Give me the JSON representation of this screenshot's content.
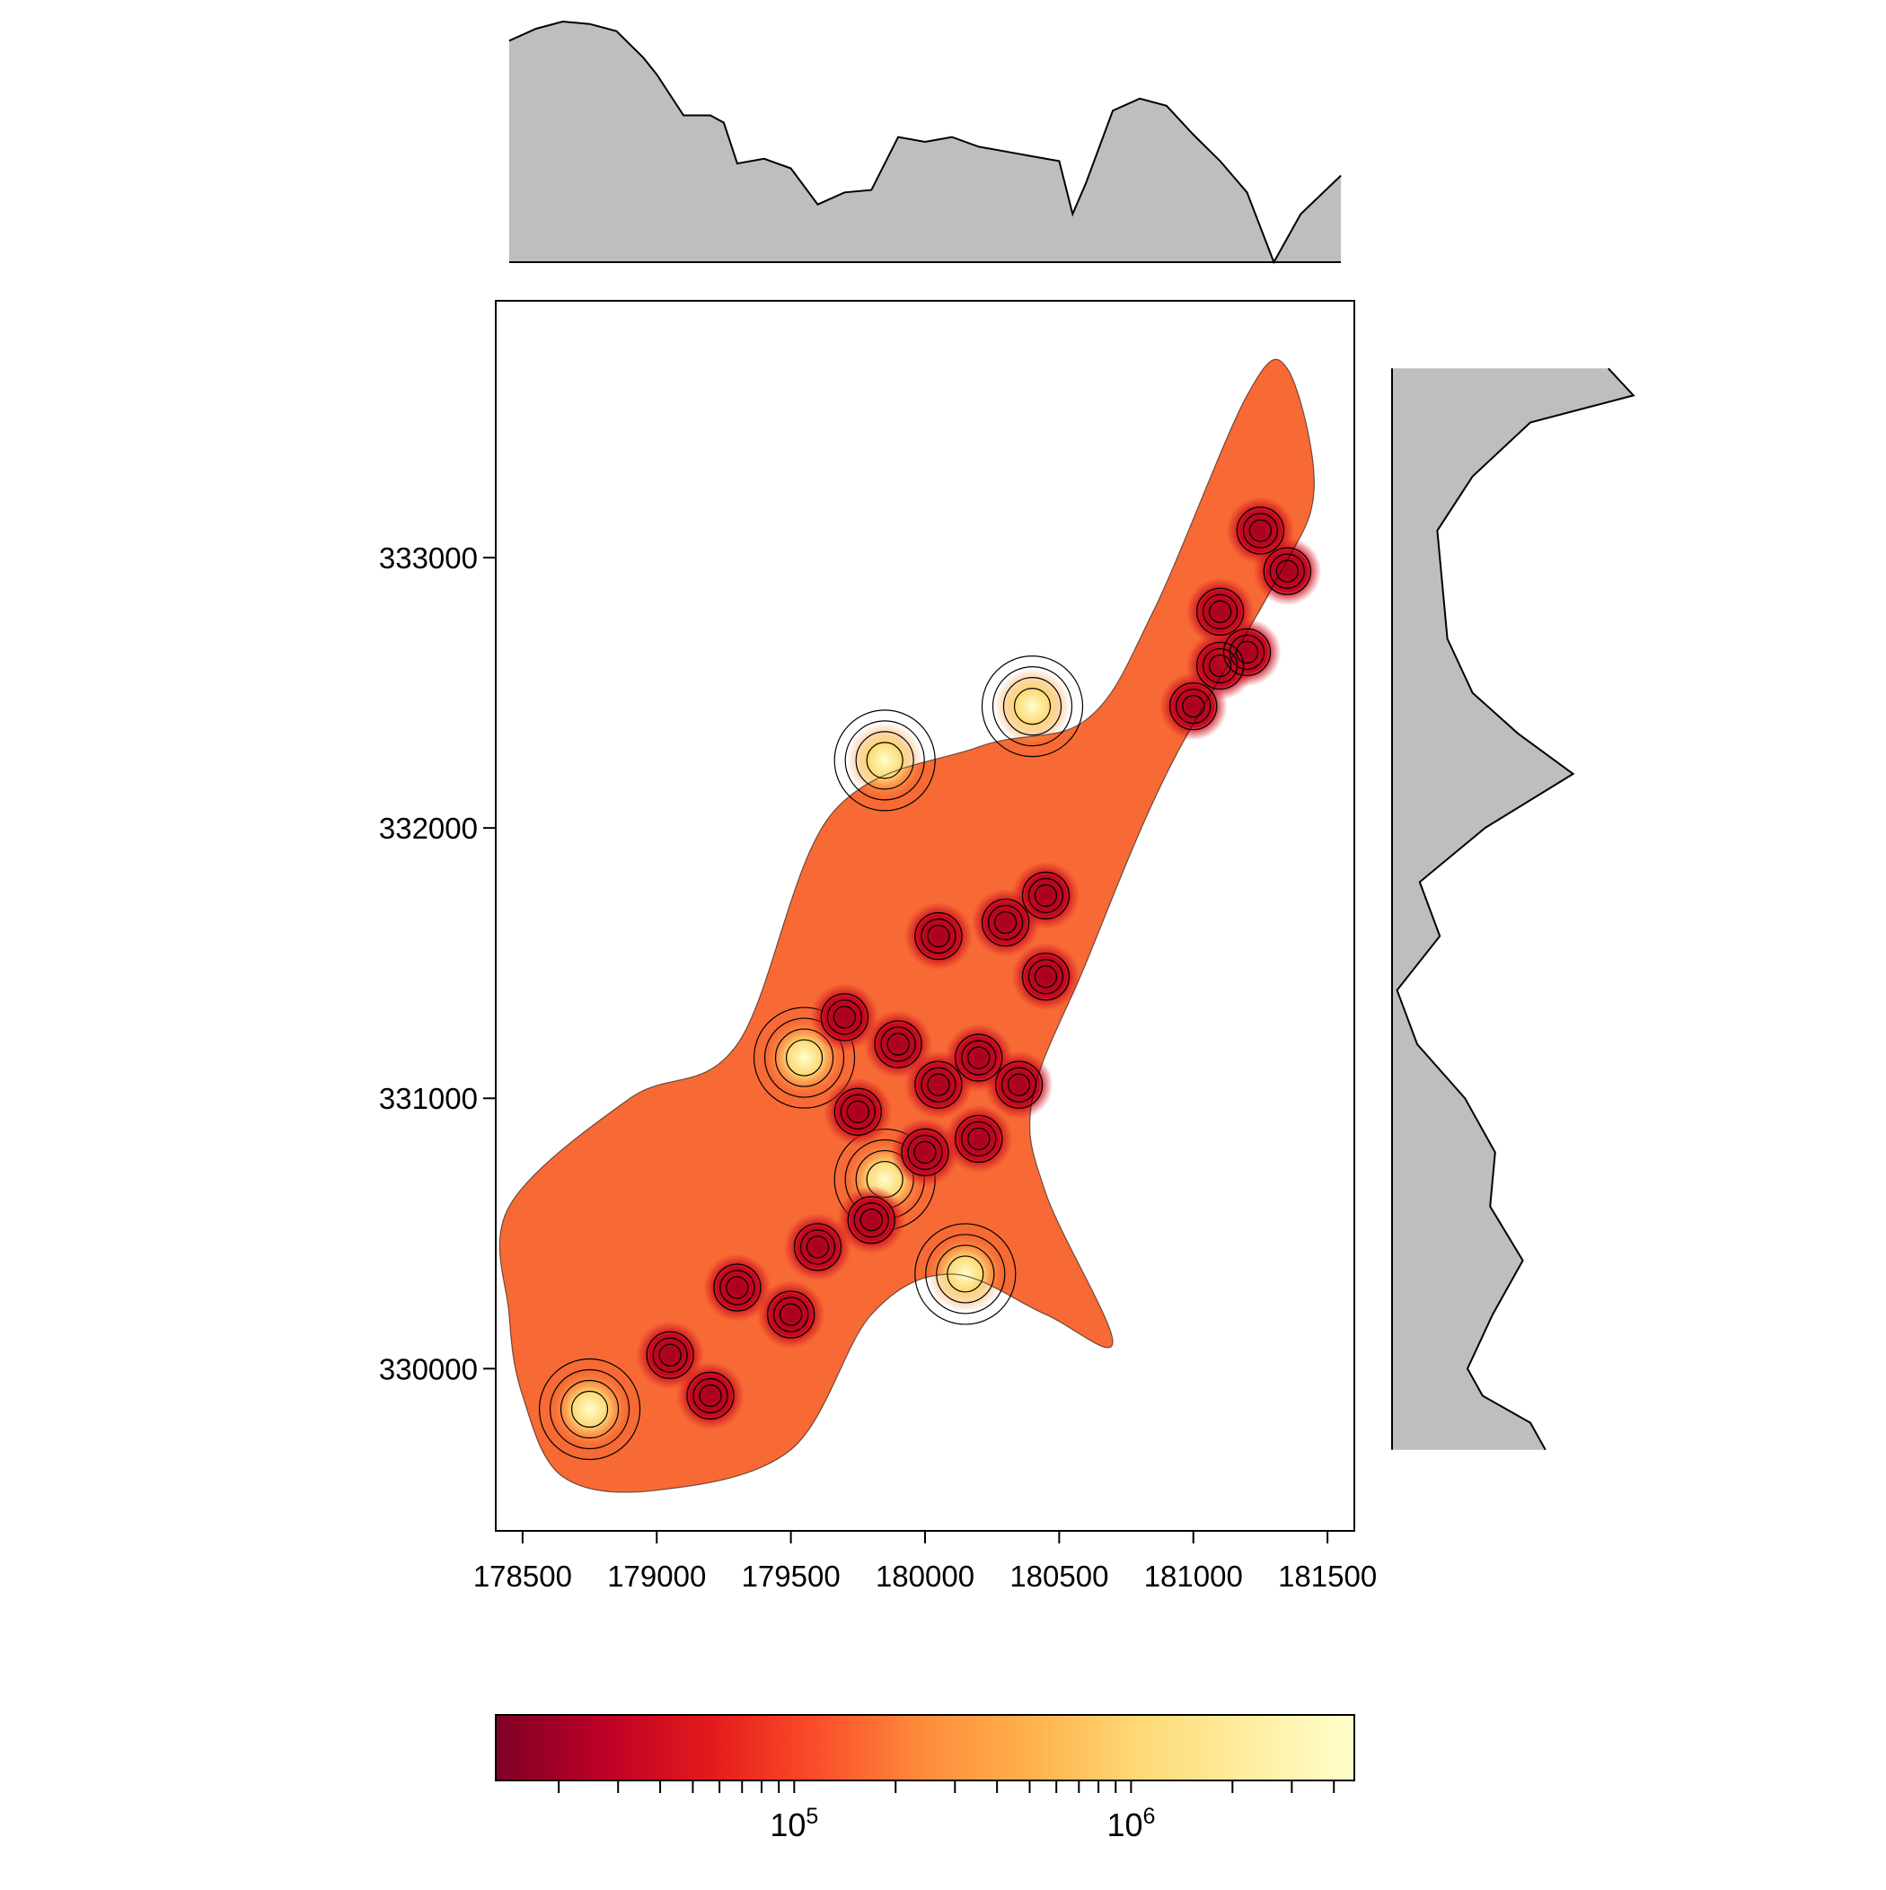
{
  "chart_data": [
    {
      "type": "heatmap",
      "title": "",
      "xlabel": "",
      "ylabel": "",
      "x_ticks": [
        "178500",
        "179000",
        "179500",
        "180000",
        "180500",
        "181000",
        "181500"
      ],
      "y_ticks": [
        "330000",
        "331000",
        "332000",
        "333000"
      ],
      "xlim": [
        178400,
        181600
      ],
      "ylim": [
        329400,
        333950
      ],
      "grid": false,
      "contours": true,
      "surface_outline": [
        [
          178500,
          329900
        ],
        [
          178450,
          330200
        ],
        [
          178450,
          330600
        ],
        [
          178900,
          331000
        ],
        [
          179300,
          331200
        ],
        [
          179650,
          332050
        ],
        [
          180200,
          332300
        ],
        [
          180600,
          332400
        ],
        [
          180850,
          332800
        ],
        [
          181200,
          333600
        ],
        [
          181350,
          333700
        ],
        [
          181450,
          333250
        ],
        [
          181300,
          332900
        ],
        [
          180900,
          332200
        ],
        [
          180600,
          331500
        ],
        [
          180400,
          331000
        ],
        [
          180450,
          330650
        ],
        [
          180700,
          330100
        ],
        [
          180450,
          330200
        ],
        [
          180100,
          330350
        ],
        [
          179800,
          330200
        ],
        [
          179500,
          329700
        ],
        [
          179000,
          329550
        ],
        [
          178650,
          329600
        ]
      ],
      "hotspots": [
        {
          "x": 179300,
          "y": 330300
        },
        {
          "x": 179500,
          "y": 330200
        },
        {
          "x": 179600,
          "y": 330450
        },
        {
          "x": 179050,
          "y": 330050
        },
        {
          "x": 179200,
          "y": 329900
        },
        {
          "x": 179800,
          "y": 330550
        },
        {
          "x": 179700,
          "y": 331300
        },
        {
          "x": 179900,
          "y": 331200
        },
        {
          "x": 180050,
          "y": 331050
        },
        {
          "x": 180200,
          "y": 331150
        },
        {
          "x": 180350,
          "y": 331050
        },
        {
          "x": 179750,
          "y": 330950
        },
        {
          "x": 180000,
          "y": 330800
        },
        {
          "x": 180200,
          "y": 330850
        },
        {
          "x": 180450,
          "y": 331450
        },
        {
          "x": 180450,
          "y": 331750
        },
        {
          "x": 180300,
          "y": 331650
        },
        {
          "x": 180050,
          "y": 331600
        },
        {
          "x": 181100,
          "y": 332800
        },
        {
          "x": 181250,
          "y": 333100
        },
        {
          "x": 181350,
          "y": 332950
        },
        {
          "x": 181000,
          "y": 332450
        },
        {
          "x": 181100,
          "y": 332600
        },
        {
          "x": 181200,
          "y": 332650
        }
      ],
      "high_spots": [
        {
          "x": 180150,
          "y": 330350
        },
        {
          "x": 178750,
          "y": 329850
        },
        {
          "x": 179550,
          "y": 331150
        },
        {
          "x": 179850,
          "y": 330700
        },
        {
          "x": 179850,
          "y": 332250
        },
        {
          "x": 180400,
          "y": 332450
        }
      ],
      "top_marginal": [
        [
          178450,
          0.92
        ],
        [
          178550,
          0.97
        ],
        [
          178650,
          1.0
        ],
        [
          178750,
          0.99
        ],
        [
          178850,
          0.96
        ],
        [
          178950,
          0.85
        ],
        [
          179000,
          0.78
        ],
        [
          179100,
          0.61
        ],
        [
          179200,
          0.61
        ],
        [
          179250,
          0.58
        ],
        [
          179300,
          0.41
        ],
        [
          179400,
          0.43
        ],
        [
          179500,
          0.39
        ],
        [
          179600,
          0.24
        ],
        [
          179700,
          0.29
        ],
        [
          179800,
          0.3
        ],
        [
          179900,
          0.52
        ],
        [
          180000,
          0.5
        ],
        [
          180100,
          0.52
        ],
        [
          180200,
          0.48
        ],
        [
          180300,
          0.46
        ],
        [
          180400,
          0.44
        ],
        [
          180500,
          0.42
        ],
        [
          180550,
          0.2
        ],
        [
          180600,
          0.33
        ],
        [
          180700,
          0.63
        ],
        [
          180800,
          0.68
        ],
        [
          180900,
          0.65
        ],
        [
          181000,
          0.53
        ],
        [
          181100,
          0.42
        ],
        [
          181200,
          0.29
        ],
        [
          181300,
          0.0
        ],
        [
          181400,
          0.2
        ],
        [
          181550,
          0.36
        ]
      ],
      "right_marginal": [
        [
          333700,
          0.86
        ],
        [
          333600,
          0.96
        ],
        [
          333500,
          0.55
        ],
        [
          333300,
          0.32
        ],
        [
          333100,
          0.18
        ],
        [
          332900,
          0.2
        ],
        [
          332700,
          0.22
        ],
        [
          332500,
          0.32
        ],
        [
          332350,
          0.5
        ],
        [
          332200,
          0.72
        ],
        [
          332000,
          0.37
        ],
        [
          331800,
          0.11
        ],
        [
          331600,
          0.19
        ],
        [
          331400,
          0.02
        ],
        [
          331200,
          0.1
        ],
        [
          331000,
          0.29
        ],
        [
          330800,
          0.41
        ],
        [
          330600,
          0.39
        ],
        [
          330400,
          0.52
        ],
        [
          330200,
          0.4
        ],
        [
          330000,
          0.3
        ],
        [
          329900,
          0.36
        ],
        [
          329800,
          0.55
        ],
        [
          329700,
          0.61
        ]
      ],
      "colorbar": {
        "scale": "log",
        "range": [
          13000,
          4600000
        ],
        "colors": [
          "#800026",
          "#bd0026",
          "#e31a1c",
          "#fc4e2a",
          "#fd8d3c",
          "#feb24c",
          "#fed976",
          "#ffeda0",
          "#ffffcc"
        ],
        "labels": [
          {
            "value": 100000,
            "base": "10",
            "exp": "5"
          },
          {
            "value": 1000000,
            "base": "10",
            "exp": "6"
          }
        ]
      }
    }
  ]
}
